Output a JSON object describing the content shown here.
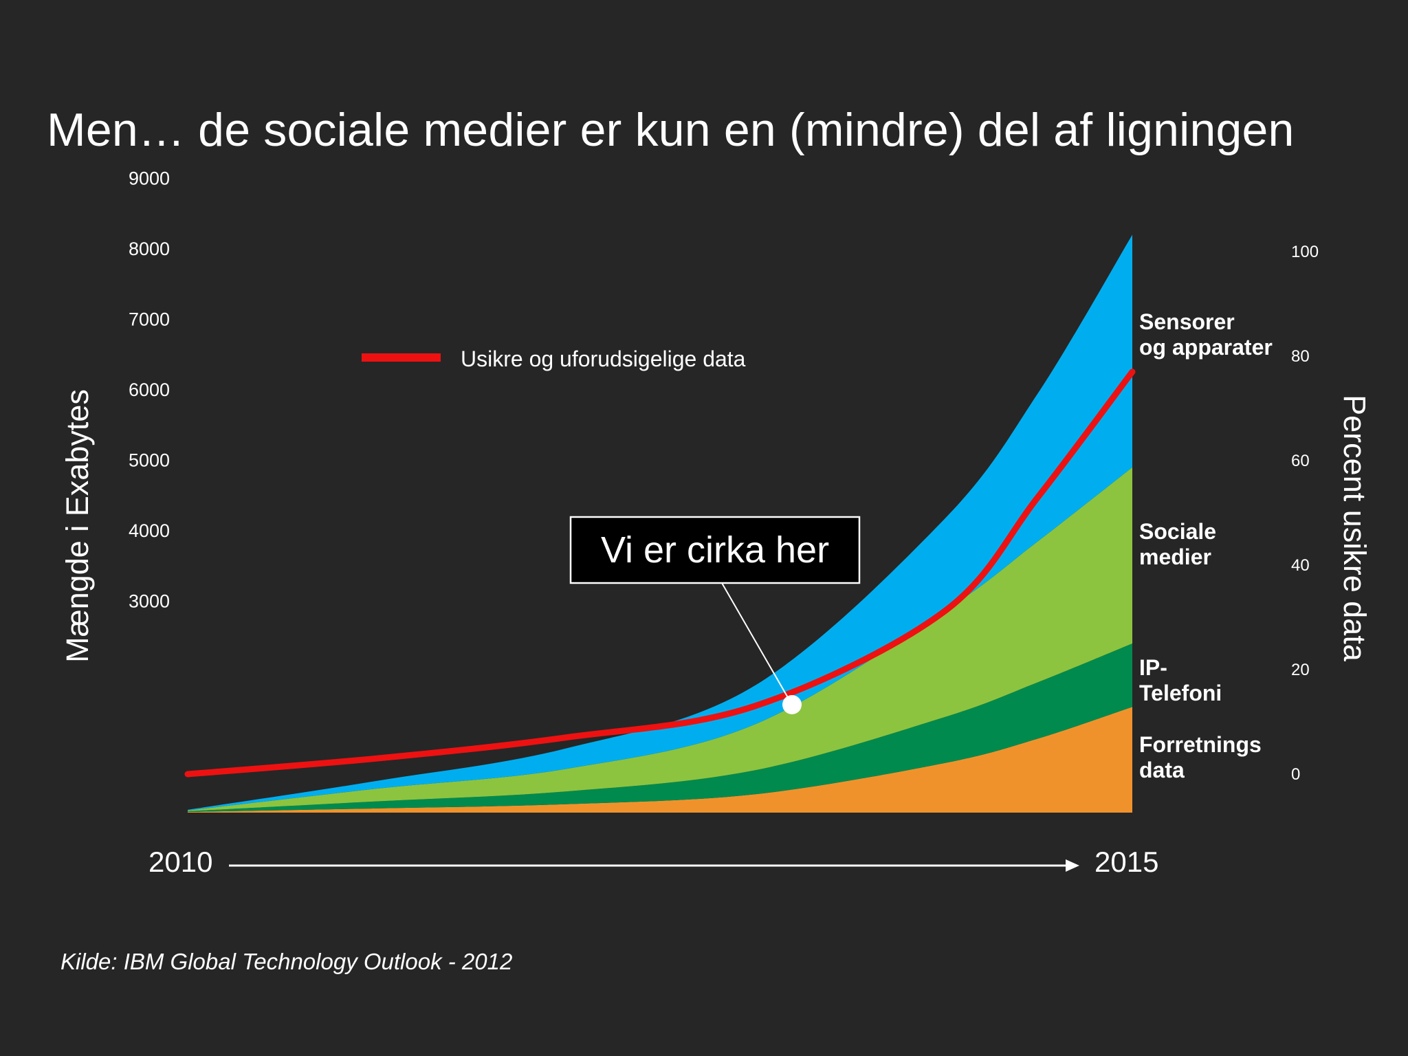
{
  "slide": {
    "title": "Men… de sociale medier er kun en (mindre) del af ligningen",
    "source": "Kilde: IBM Global Technology Outlook - 2012"
  },
  "colors": {
    "background": "#262626",
    "forretningsdata": "#F0922B",
    "ip_telefoni": "#008A4E",
    "sociale_medier": "#8CC43F",
    "sensorer": "#00AEEF",
    "usikre_line": "#EE1111"
  },
  "chart_data": {
    "type": "area",
    "stacked": true,
    "x_start_label": "2010",
    "x_end_label": "2015",
    "x": [
      2010,
      2011,
      2012,
      2013,
      2014,
      2014.5,
      2015
    ],
    "ylabel": "Mængde i Exabytes",
    "y_ticks": [
      "9000",
      "8000",
      "7000",
      "6000",
      "5000",
      "4000",
      "3000"
    ],
    "y_tick_values": [
      9000,
      8000,
      7000,
      6000,
      5000,
      4000,
      3000
    ],
    "ylabel_right": "Percent usikre data",
    "y_right_ticks": [
      "100",
      "80",
      "60",
      "40",
      "20",
      "0"
    ],
    "y_right_tick_values": [
      100,
      80,
      60,
      40,
      20,
      0
    ],
    "series": [
      {
        "name": "Forretnings data",
        "label_lines": [
          "Forretnings",
          "data"
        ],
        "values": [
          10,
          60,
          120,
          260,
          700,
          1050,
          1500
        ]
      },
      {
        "name": "IP-Telefoni",
        "label_lines": [
          "IP-",
          "Telefoni"
        ],
        "values": [
          10,
          100,
          180,
          340,
          650,
          800,
          900
        ]
      },
      {
        "name": "Sociale medier",
        "label_lines": [
          "Sociale",
          "medier"
        ],
        "values": [
          10,
          180,
          320,
          650,
          1500,
          2000,
          2500
        ]
      },
      {
        "name": "Sensorer og apparater",
        "label_lines": [
          "Sensorer",
          "og apparater"
        ],
        "values": [
          10,
          110,
          290,
          550,
          1300,
          2100,
          3300
        ]
      }
    ],
    "line_series": {
      "name": "Usikre og uforudsigelige data",
      "axis": "right",
      "x": [
        2010,
        2011,
        2012,
        2013,
        2014,
        2014.5,
        2015
      ],
      "values": [
        0,
        3,
        7,
        13,
        31,
        53,
        77
      ]
    },
    "annotation": {
      "text": "Vi er cirka her",
      "x": 2013.3,
      "y": 1550
    },
    "legend_placement": "top-center"
  }
}
